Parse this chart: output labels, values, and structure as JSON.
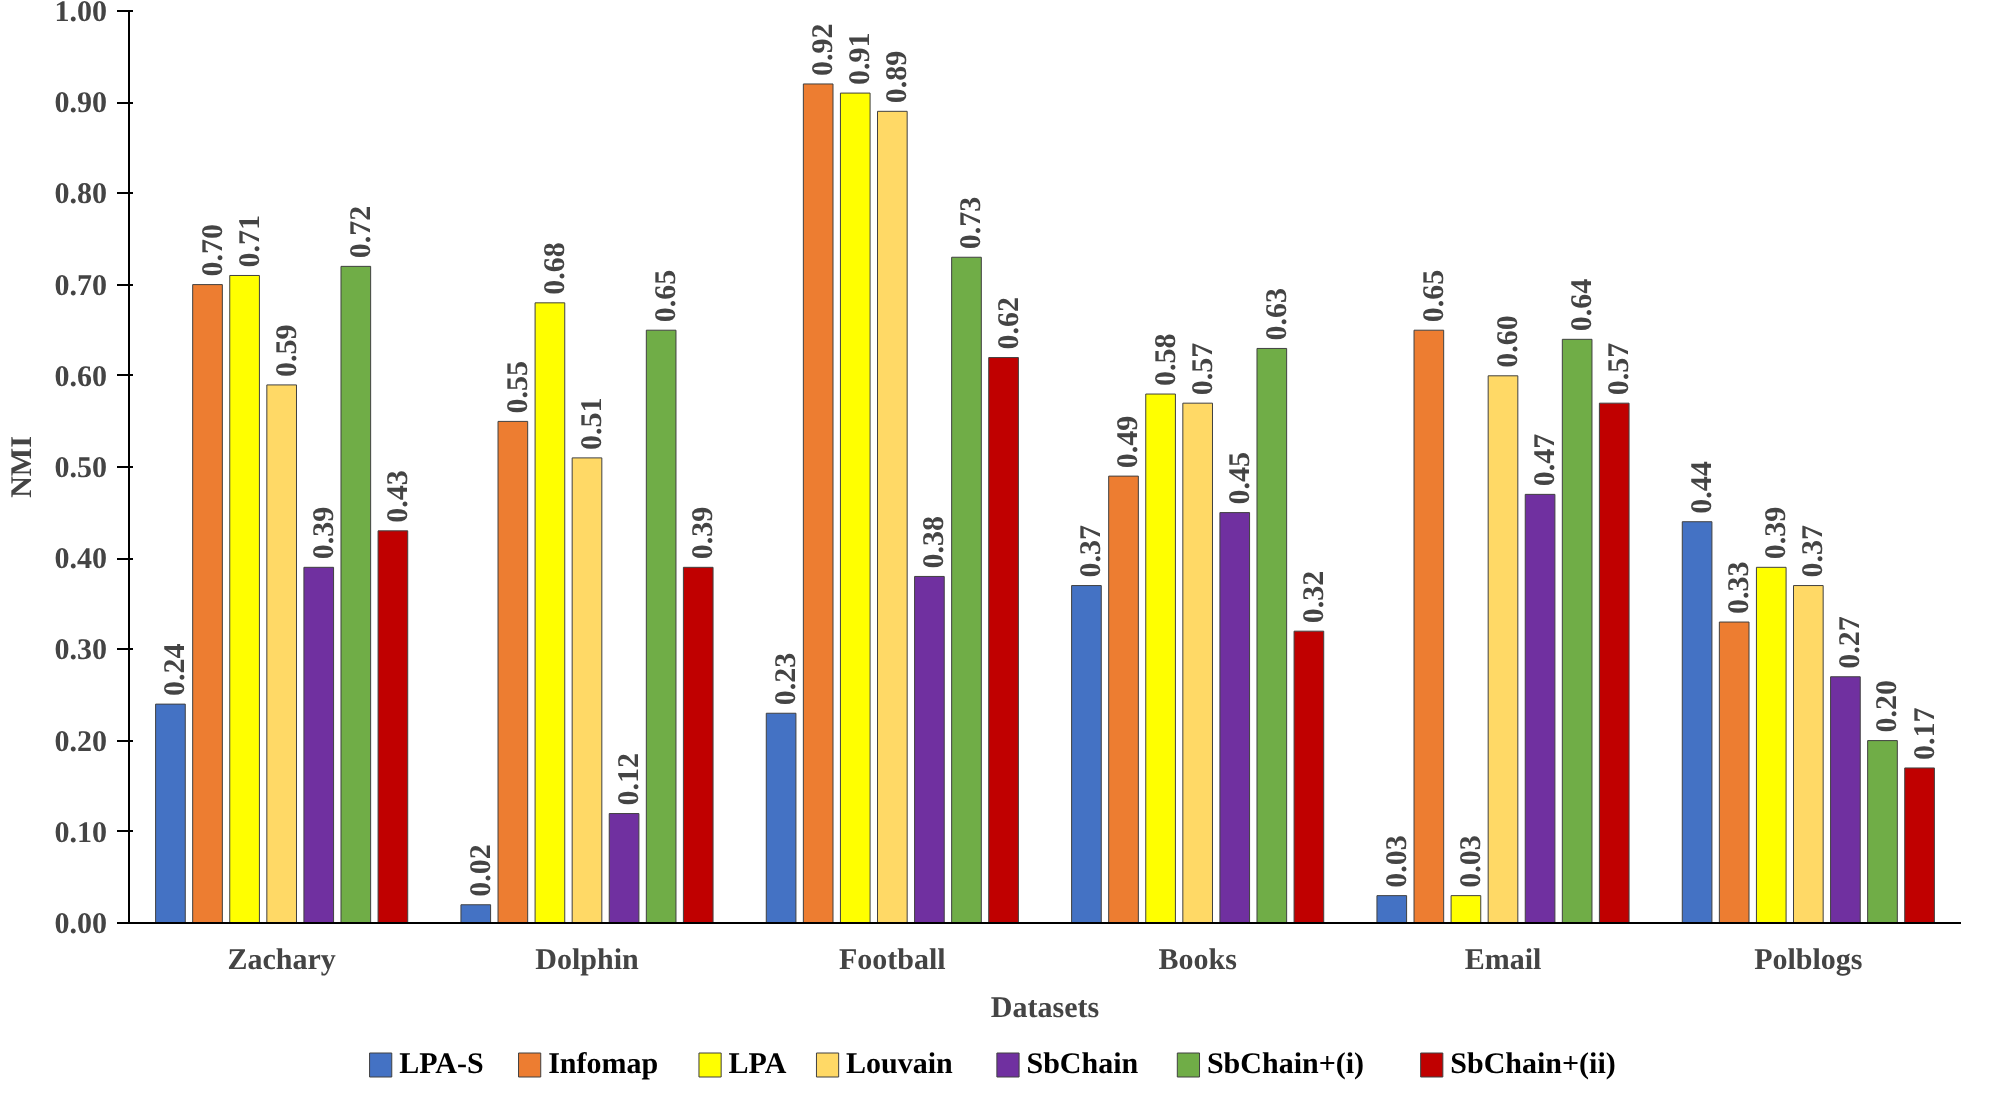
{
  "chart_data": {
    "type": "bar",
    "xlabel": "Datasets",
    "ylabel": "NMI",
    "categories": [
      "Zachary",
      "Dolphin",
      "Football",
      "Books",
      "Email",
      "Polblogs"
    ],
    "series": [
      {
        "name": "LPA-S",
        "color": "#4472c4",
        "values": [
          0.24,
          0.02,
          0.23,
          0.37,
          0.03,
          0.44
        ],
        "value_labels": [
          "0.24",
          "0.02",
          "0.23",
          "0.37",
          "0.03",
          "0.44"
        ]
      },
      {
        "name": "Infomap",
        "color": "#ed7d31",
        "values": [
          0.7,
          0.55,
          0.92,
          0.49,
          0.65,
          0.33
        ],
        "value_labels": [
          "0.70",
          "0.55",
          "0.92",
          "0.49",
          "0.65",
          "0.33"
        ]
      },
      {
        "name": "LPA",
        "color": "#ffff00",
        "values": [
          0.71,
          0.68,
          0.91,
          0.58,
          0.03,
          0.39
        ],
        "value_labels": [
          "0.71",
          "0.68",
          "0.91",
          "0.58",
          "0.03",
          "0.39"
        ]
      },
      {
        "name": "Louvain",
        "color": "#ffd966",
        "values": [
          0.59,
          0.51,
          0.89,
          0.57,
          0.6,
          0.37
        ],
        "value_labels": [
          "0.59",
          "0.51",
          "0.89",
          "0.57",
          "0.60",
          "0.37"
        ]
      },
      {
        "name": "SbChain",
        "color": "#7030a0",
        "values": [
          0.39,
          0.12,
          0.38,
          0.45,
          0.47,
          0.27
        ],
        "value_labels": [
          "0.39",
          "0.12",
          "0.38",
          "0.45",
          "0.47",
          "0.27"
        ]
      },
      {
        "name": "SbChain+(i)",
        "color": "#70ad47",
        "values": [
          0.72,
          0.65,
          0.73,
          0.63,
          0.64,
          0.2
        ],
        "value_labels": [
          "0.72",
          "0.65",
          "0.73",
          "0.63",
          "0.64",
          "0.20"
        ]
      },
      {
        "name": "SbChain+(ii)",
        "color": "#c00000",
        "values": [
          0.43,
          0.39,
          0.62,
          0.32,
          0.57,
          0.17
        ],
        "value_labels": [
          "0.43",
          "0.39",
          "0.62",
          "0.32",
          "0.57",
          "0.17"
        ]
      }
    ],
    "ylim": [
      0,
      1
    ],
    "yticks": [
      {
        "value": 0,
        "label": "0.00"
      },
      {
        "value": 0.1,
        "label": "0.10"
      },
      {
        "value": 0.2,
        "label": "0.20"
      },
      {
        "value": 0.3,
        "label": "0.30"
      },
      {
        "value": 0.4,
        "label": "0.40"
      },
      {
        "value": 0.5,
        "label": "0.50"
      },
      {
        "value": 0.6,
        "label": "0.60"
      },
      {
        "value": 0.7,
        "label": "0.70"
      },
      {
        "value": 0.8,
        "label": "0.80"
      },
      {
        "value": 0.9,
        "label": "0.90"
      },
      {
        "value": 1,
        "label": "1.00"
      }
    ],
    "grid": false,
    "legend": "bottom"
  }
}
